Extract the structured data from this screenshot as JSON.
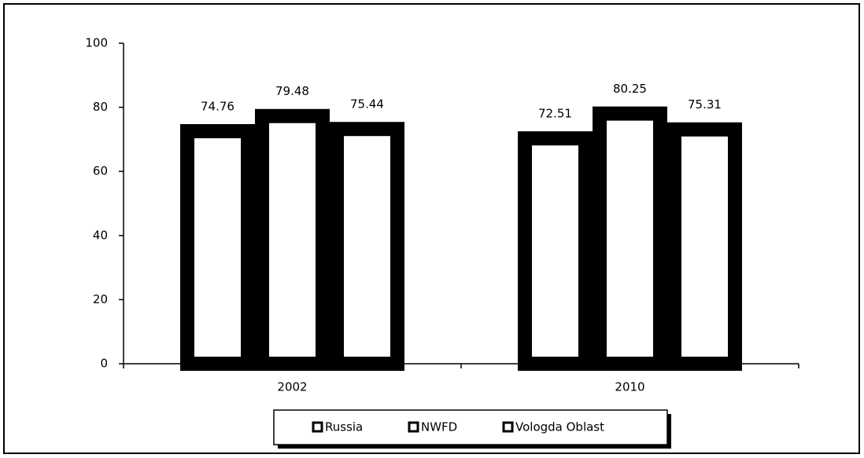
{
  "chart_data": {
    "type": "bar",
    "categories": [
      "2002",
      "2010"
    ],
    "series": [
      {
        "name": "Russia",
        "color": "#ffffff",
        "values": [
          74.76,
          72.51
        ]
      },
      {
        "name": "NWFD",
        "color": "#ffffff",
        "values": [
          79.48,
          80.25
        ]
      },
      {
        "name": "Vologda Oblast",
        "color": "#ffffff",
        "values": [
          75.44,
          75.31
        ]
      }
    ],
    "ylim": [
      0,
      100
    ],
    "yticks": [
      0,
      20,
      40,
      60,
      80,
      100
    ],
    "grid": false,
    "legend": "bottom"
  }
}
